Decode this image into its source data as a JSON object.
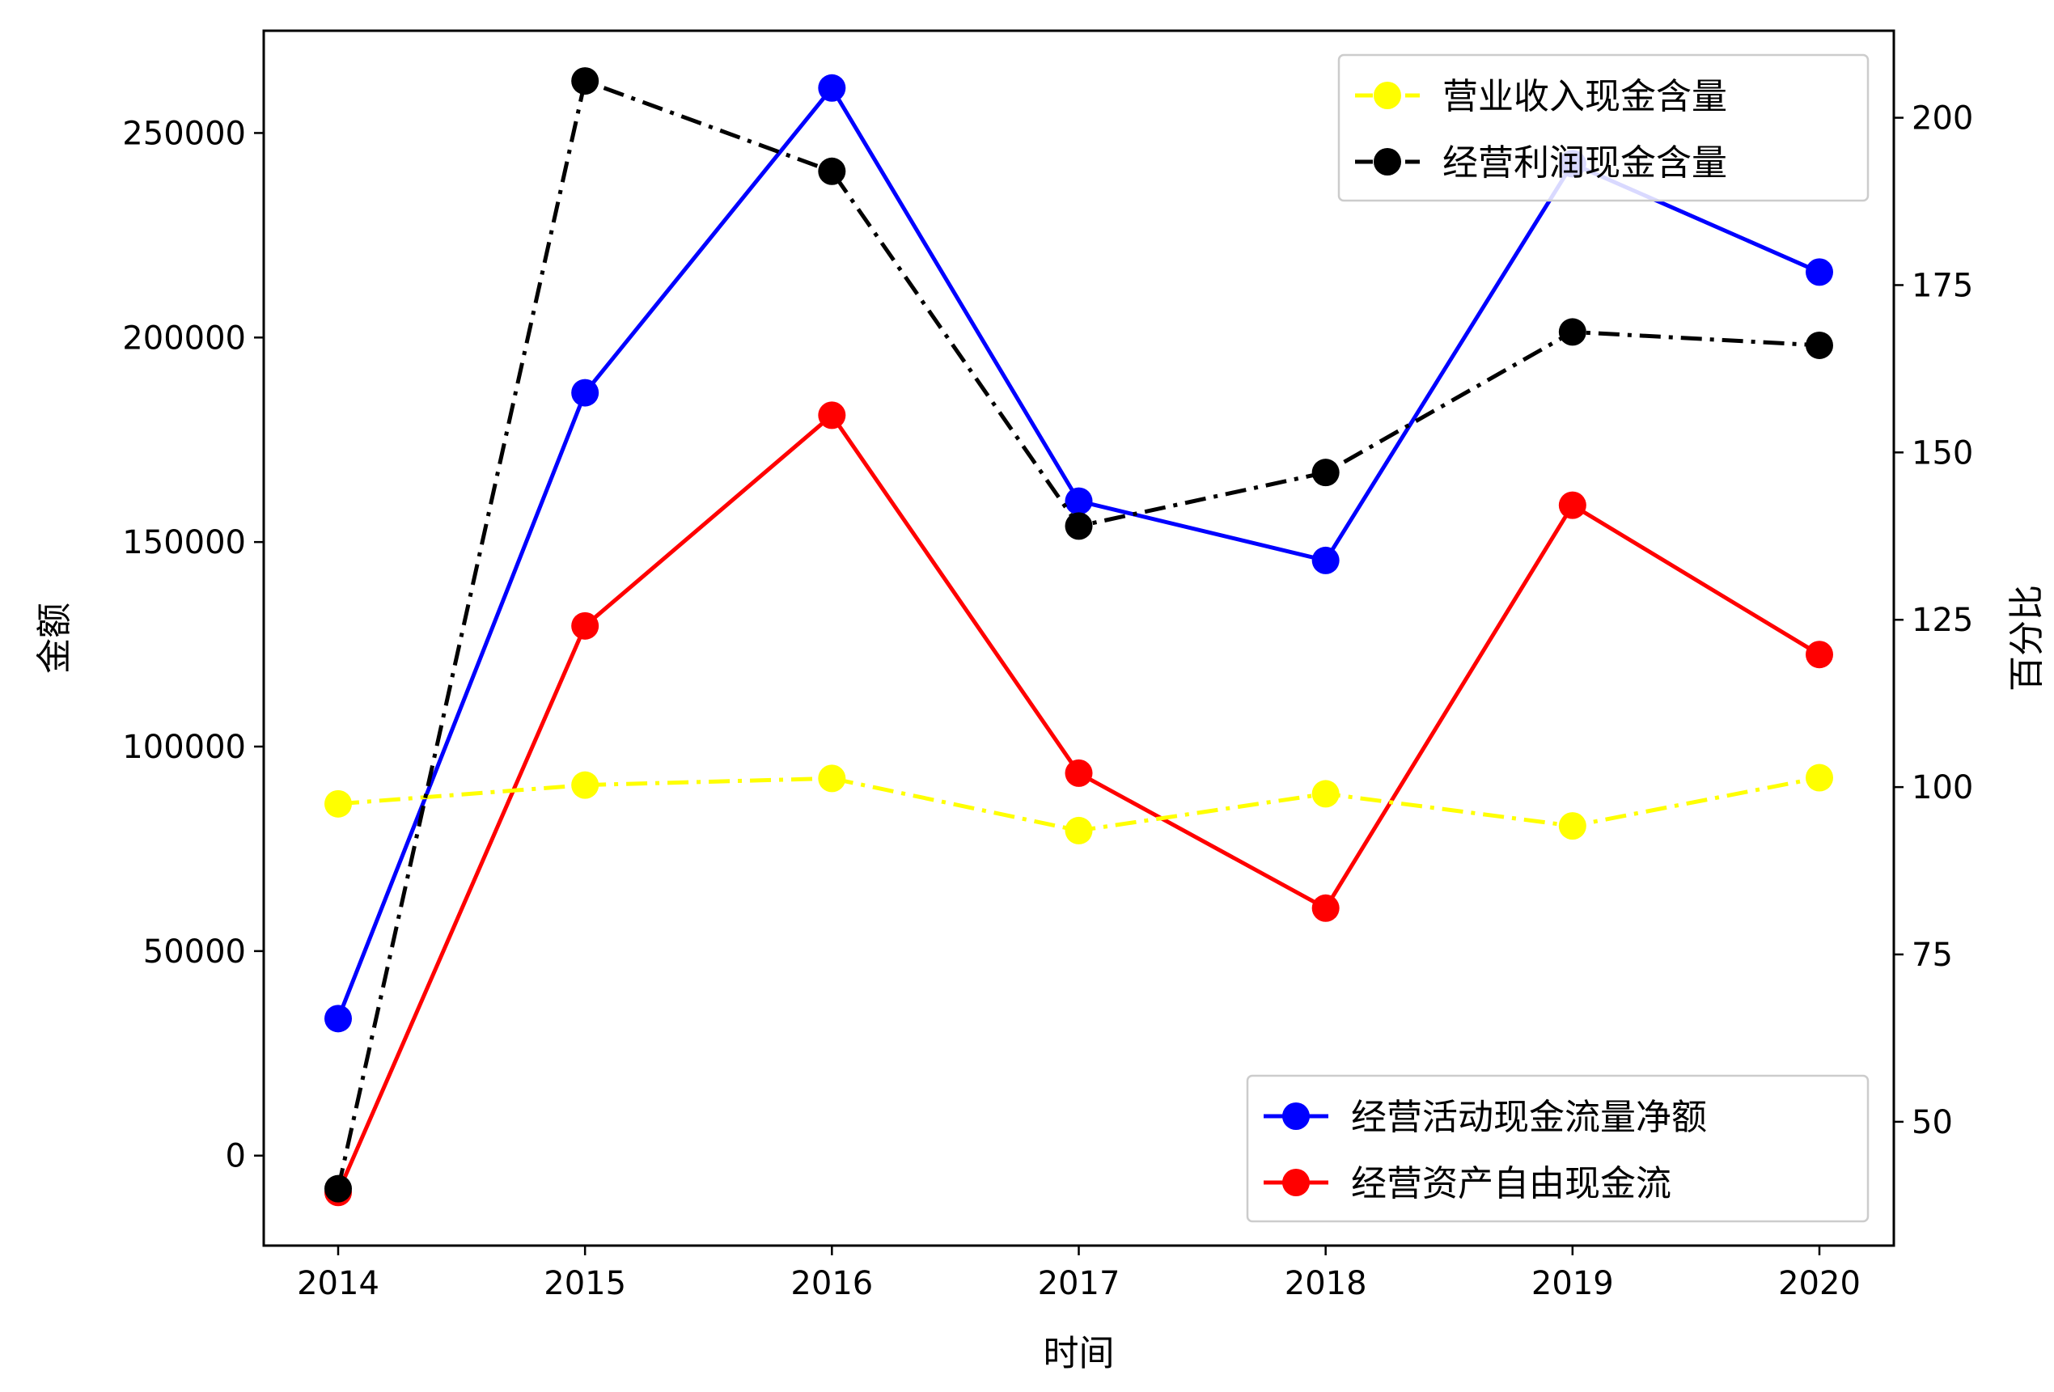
{
  "chart_data": {
    "type": "line",
    "title": "",
    "xlabel": "时间",
    "ylabel_left": "金额",
    "ylabel_right": "百分比",
    "categories": [
      "2014",
      "2015",
      "2016",
      "2017",
      "2018",
      "2019",
      "2020"
    ],
    "ylim_left": [
      -22000,
      275000
    ],
    "yticks_left": [
      0,
      50000,
      100000,
      150000,
      200000,
      250000
    ],
    "ylim_right": [
      31.5,
      213
    ],
    "yticks_right": [
      50,
      75,
      100,
      125,
      150,
      175,
      200
    ],
    "grid": false,
    "series_left": [
      {
        "name": "经营活动现金流量净额",
        "color": "#0000ff",
        "linestyle": "solid",
        "values": [
          33500,
          186500,
          261000,
          160000,
          145500,
          242500,
          216000
        ]
      },
      {
        "name": "经营资产自由现金流",
        "color": "#ff0000",
        "linestyle": "solid",
        "values": [
          -9000,
          129500,
          181000,
          93500,
          60500,
          159000,
          122500
        ]
      }
    ],
    "series_right": [
      {
        "name": "营业收入现金含量",
        "color": "#ffff00",
        "linestyle": "dashdot",
        "values": [
          97.5,
          100.3,
          101.3,
          93.5,
          99.0,
          94.2,
          101.4
        ]
      },
      {
        "name": "经营利润现金含量",
        "color": "#000000",
        "linestyle": "dashdot",
        "values": [
          40,
          205.5,
          192,
          139,
          147,
          168,
          166
        ]
      }
    ],
    "legend_right_placement": "upper right",
    "legend_left_placement": "lower right"
  }
}
